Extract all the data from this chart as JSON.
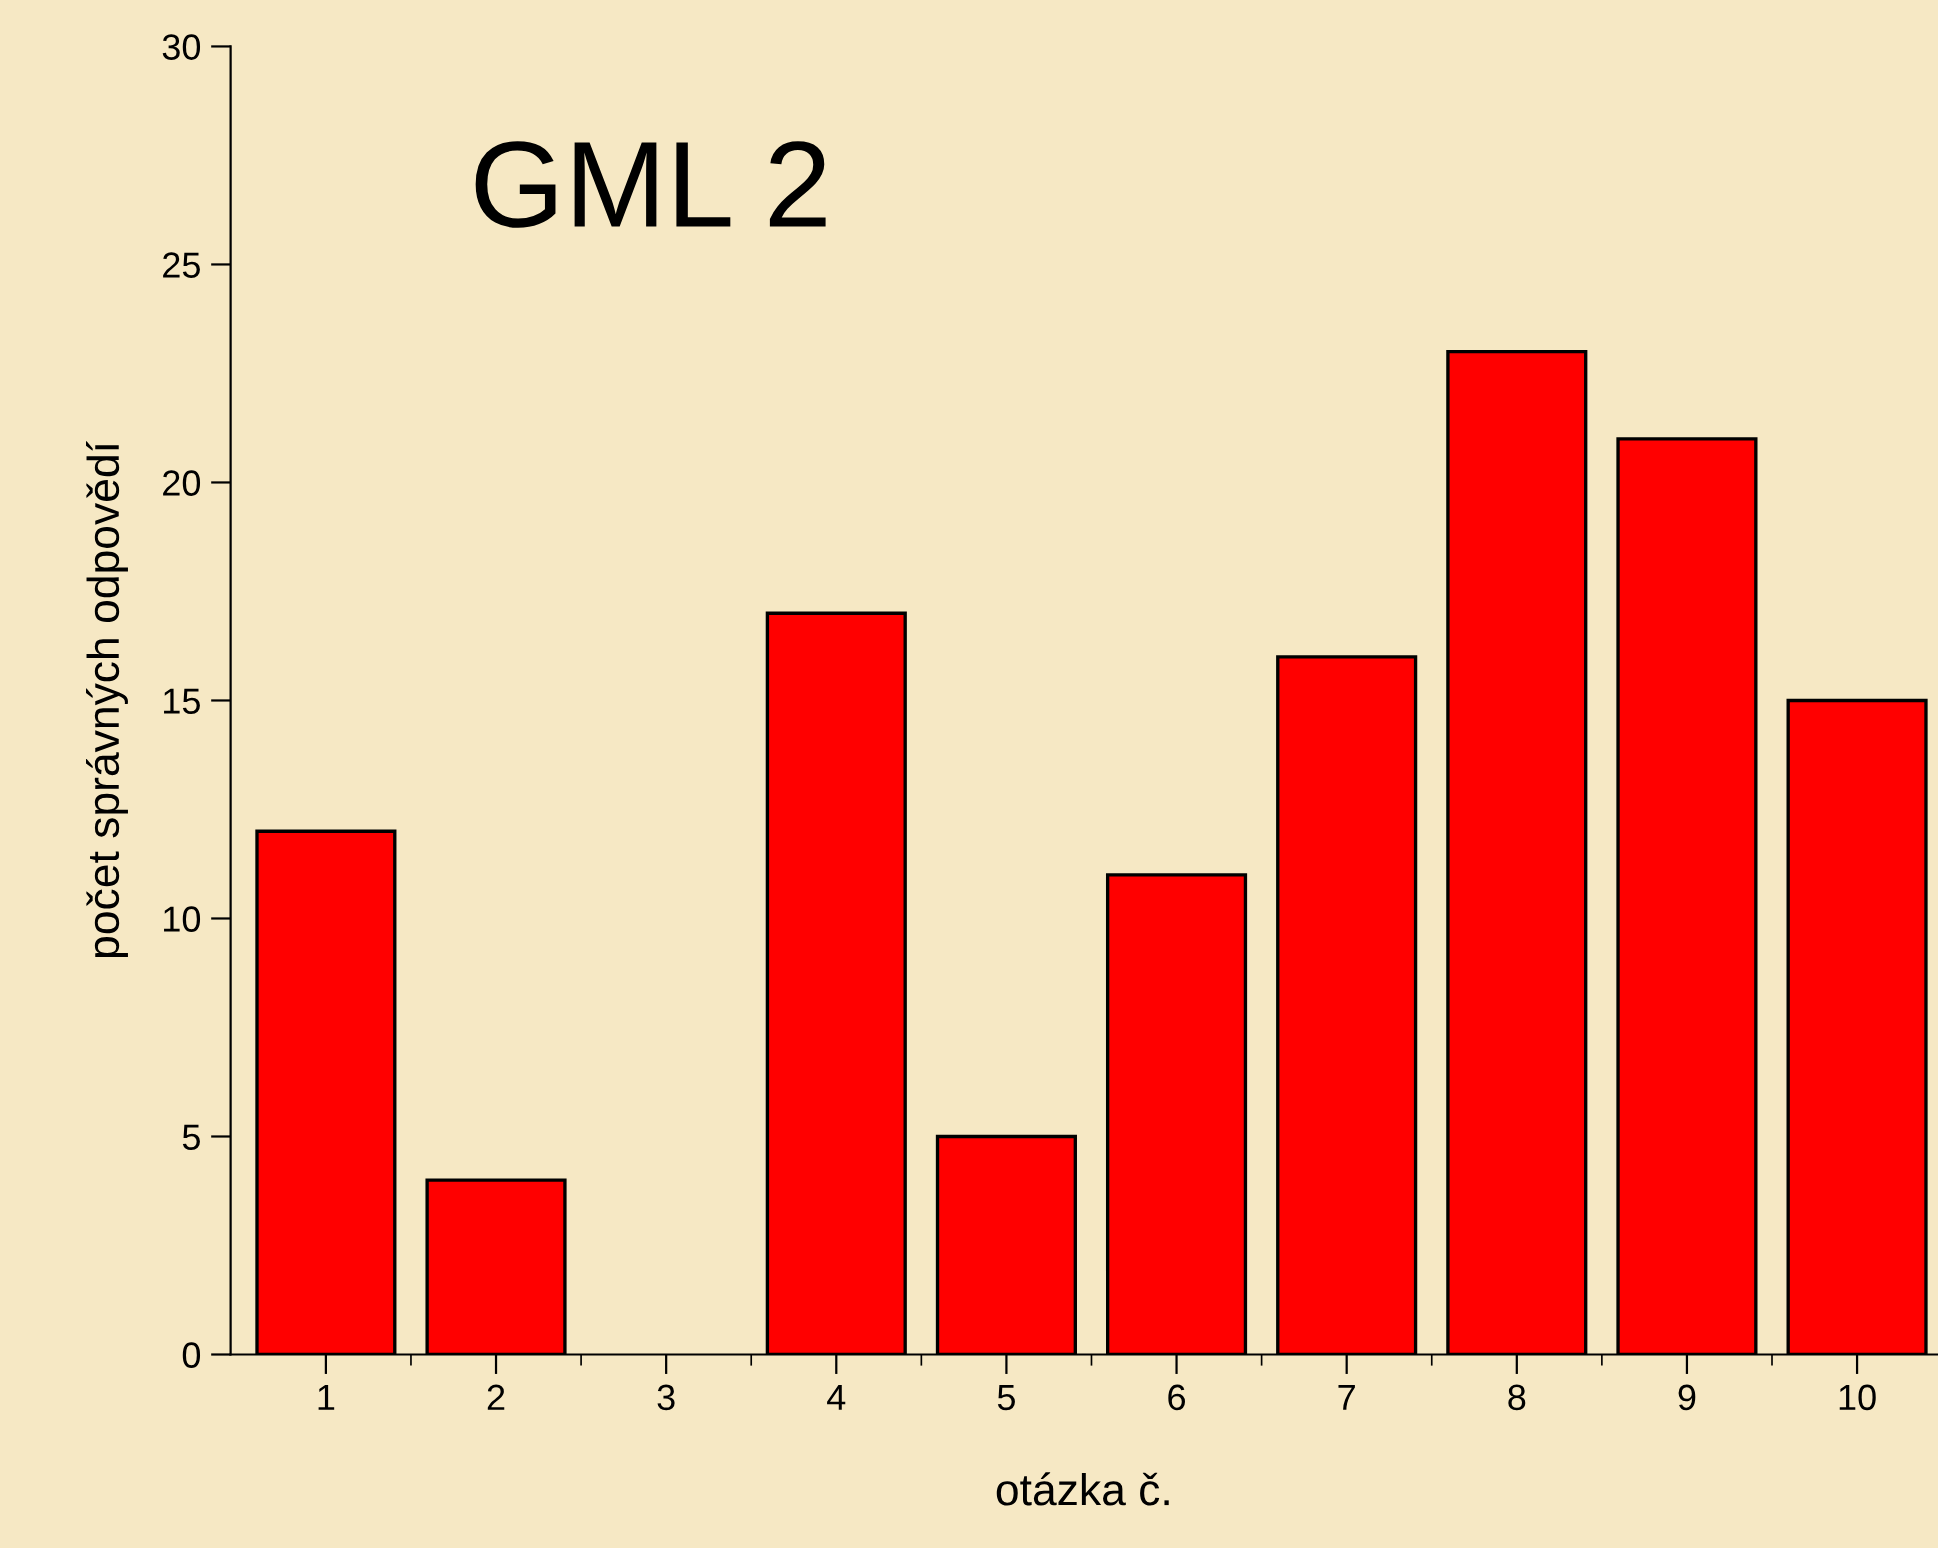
{
  "chart_data": {
    "type": "bar",
    "title": "GML 2",
    "xlabel": "otázka č.",
    "ylabel": "počet správných odpovědí",
    "categories": [
      "1",
      "2",
      "3",
      "4",
      "5",
      "6",
      "7",
      "8",
      "9",
      "10"
    ],
    "values": [
      12,
      4,
      0,
      17,
      5,
      11,
      16,
      23,
      21,
      15
    ],
    "color": "#ff0000",
    "ylim": [
      0,
      30
    ],
    "yticks": [
      0,
      5,
      10,
      15,
      20,
      25,
      30
    ],
    "grid": false,
    "legend": false
  }
}
